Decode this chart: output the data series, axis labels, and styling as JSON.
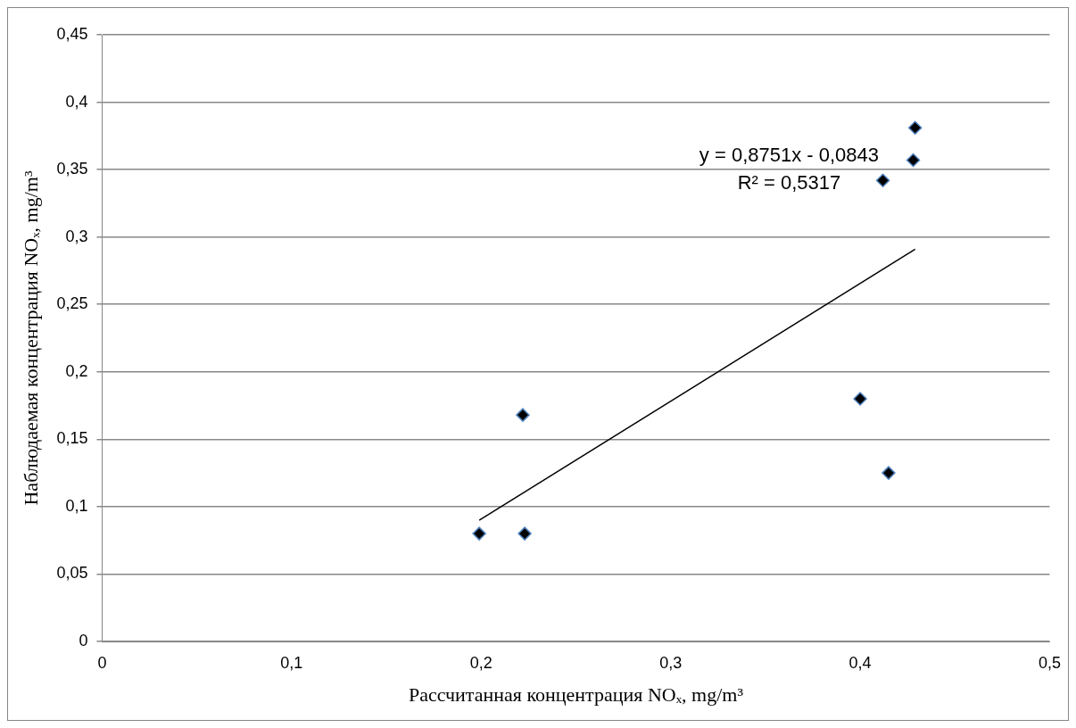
{
  "chart_data": {
    "type": "scatter",
    "xlabel": "Рассчитанная концентрация NOₓ, mg/m³",
    "ylabel": "Наблюдаемая концентрация NOₓ, mg/m³",
    "series": [
      {
        "type": "scatter",
        "color": "#000000",
        "marker": "diamond",
        "x": [
          0.199,
          0.222,
          0.223,
          0.4,
          0.415,
          0.412,
          0.428,
          0.429
        ],
        "values": [
          0.08,
          0.168,
          0.08,
          0.18,
          0.125,
          0.342,
          0.357,
          0.381
        ]
      },
      {
        "type": "line",
        "color": "#000000",
        "marker": "none",
        "line_style": "solid",
        "x": [
          0.199,
          0.429
        ],
        "values": [
          0.0899,
          0.291
        ]
      }
    ],
    "annotations": [
      "y = 0,8751x - 0,0843",
      "R² = 0,5317"
    ],
    "xlim": [
      0,
      0.5
    ],
    "xticks": [
      0,
      {
        "value": 0.1,
        "label": "0,1"
      },
      {
        "value": 0.2,
        "label": "0,2"
      },
      {
        "value": 0.3,
        "label": "0,3"
      },
      {
        "value": 0.4,
        "label": "0,4"
      },
      {
        "value": 0.5,
        "label": "0,5"
      }
    ],
    "ylim": [
      0,
      0.45
    ],
    "yticks": [
      0,
      {
        "value": 0.05,
        "label": "0,05"
      },
      {
        "value": 0.1,
        "label": "0,1"
      },
      {
        "value": 0.15,
        "label": "0,15"
      },
      {
        "value": 0.2,
        "label": "0,2"
      },
      {
        "value": 0.25,
        "label": "0,25"
      },
      {
        "value": 0.3,
        "label": "0,3"
      },
      {
        "value": 0.35,
        "label": "0,35"
      },
      {
        "value": 0.4,
        "label": "0,4"
      },
      {
        "value": 0.45,
        "label": "0,45"
      }
    ],
    "grid": "y",
    "legend": false
  }
}
